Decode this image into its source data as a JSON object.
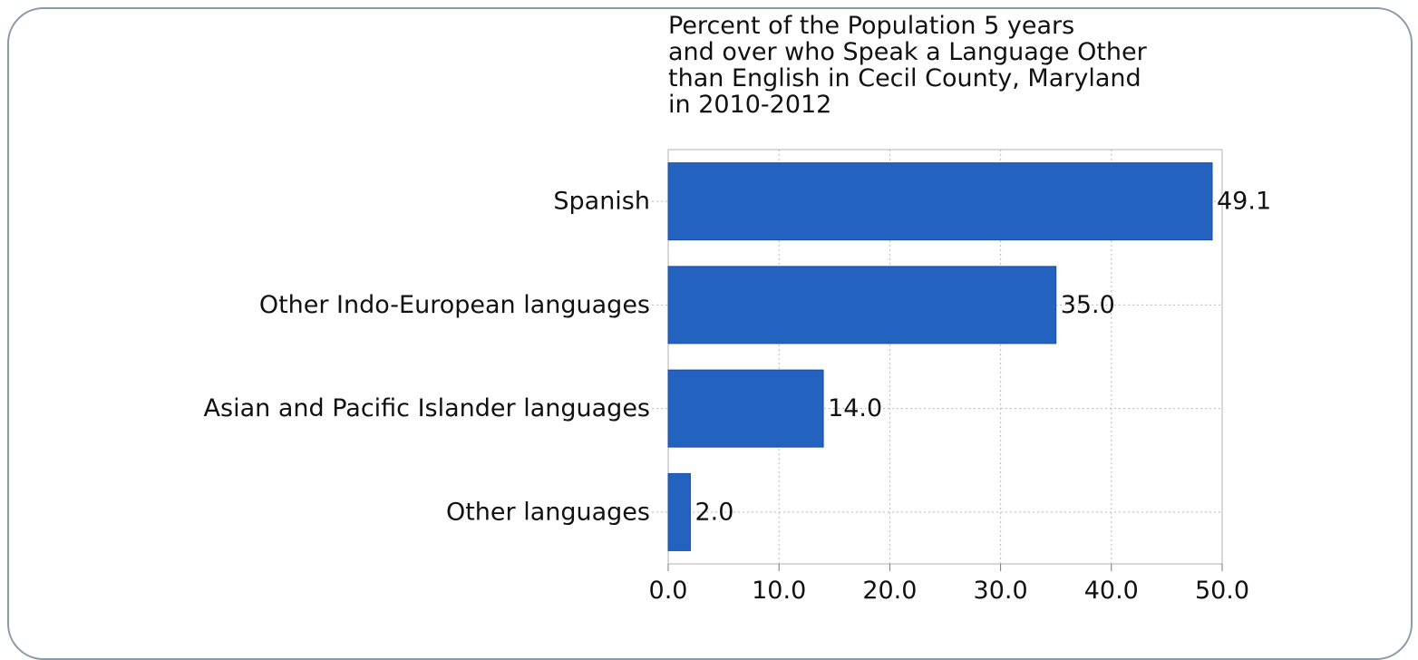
{
  "colors": {
    "bar": "#2462c0",
    "bar_stroke": "#1a4d9e",
    "grid": "#b9b9b9",
    "frame": "#8a9aa8",
    "plot_border": "#b0b0b0"
  },
  "chart_data": {
    "type": "bar",
    "orientation": "horizontal",
    "title": "Percent of the Population 5 years\nand over who Speak a Language Other\nthan English in Cecil County, Maryland\nin 2010-2012",
    "categories": [
      "Spanish",
      "Other Indo-European languages",
      "Asian and Pacific Islander languages",
      "Other languages"
    ],
    "values": [
      49.1,
      35.0,
      14.0,
      2.0
    ],
    "value_labels": [
      "49.1",
      "35.0",
      "14.0",
      "2.0"
    ],
    "xlim": [
      0,
      50
    ],
    "ticks": [
      0,
      10,
      20,
      30,
      40,
      50
    ],
    "tick_labels": [
      "0.0",
      "10.0",
      "20.0",
      "30.0",
      "40.0",
      "50.0"
    ],
    "xlabel": "",
    "ylabel": "",
    "grid": true
  }
}
